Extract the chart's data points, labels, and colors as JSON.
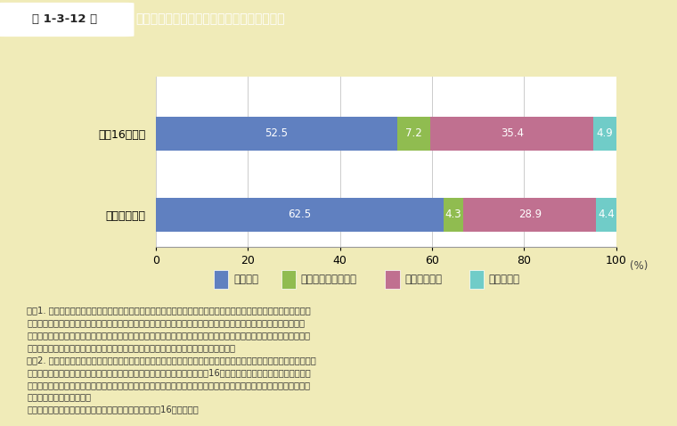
{
  "title_label": "科学技術に関する国民の理解力に関する意識",
  "title_prefix": "第 1-3-12 図",
  "categories": [
    "平成16年２月",
    "平成７年２月"
  ],
  "series_names": [
    "そう思う",
    "どちらともいえない",
    "そう思わない",
    "分からない"
  ],
  "series_values": {
    "そう思う": [
      52.5,
      62.5
    ],
    "どちらともいえない": [
      7.2,
      4.3
    ],
    "そう思わない": [
      35.4,
      28.9
    ],
    "分からない": [
      4.9,
      4.4
    ]
  },
  "colors": {
    "そう思う": "#6080c0",
    "どちらともいえない": "#90bc50",
    "そう思わない": "#c07090",
    "分からない": "#70ccc8"
  },
  "xlim": [
    0,
    100
  ],
  "xticks": [
    0,
    20,
    40,
    60,
    80,
    100
  ],
  "background_color": "#f0ebb8",
  "chart_bg": "#ffffff",
  "header_bg": "#aacc44",
  "header_text_color": "#ffffff",
  "header_box_bg": "#ffffff",
  "header_box_text": "#333333",
  "note_lines": [
    "注）1. 科学技術への関心と理解を高めるためには、科学者が科学館・博物館などの体験の場や研究所の一般公開、講",
    "　　　演会などを通じて科学技術をわかりやすく説明し、情報を発信することが必要ですが、このような科学者や技",
    "　　　術者からの情報発信に関して、あなたはどのように思いますか、という問いの中で、「科学技術に関する知識は",
    "　　　わかりやすく説明されれば大抵の人は理解できる」という文章についての回答。",
    "　　2. 平成７年２月調査の「そう思う」は「全くその通りだと思う」と「その通りだと思う」を、「そう思わない」は",
    "　　　「決してそう思わない」と「そう思わない」を合わせたもので、平成16年２月調査の「そう思う」は「そう思",
    "　　　う」と「どちらかというとそう思う」を、「そう思わない」は「あまりそう思わない」と「そう思わない」を合",
    "　　　わせたものである。",
    "資料：内閣府「科学技術と社会に関する世論調査（平成16年２月）」"
  ]
}
